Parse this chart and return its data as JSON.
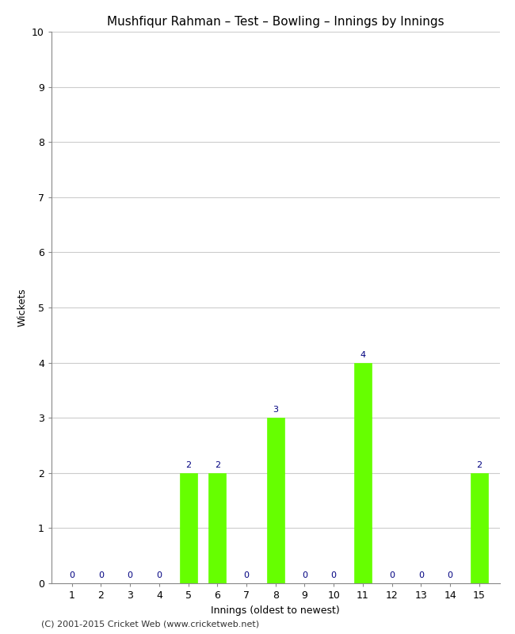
{
  "title": "Mushfiqur Rahman – Test – Bowling – Innings by Innings",
  "xlabel": "Innings (oldest to newest)",
  "ylabel": "Wickets",
  "innings": [
    1,
    2,
    3,
    4,
    5,
    6,
    7,
    8,
    9,
    10,
    11,
    12,
    13,
    14,
    15
  ],
  "wickets": [
    0,
    0,
    0,
    0,
    2,
    2,
    0,
    3,
    0,
    0,
    4,
    0,
    0,
    0,
    2
  ],
  "bar_color": "#66ff00",
  "ylim": [
    0,
    10
  ],
  "yticks": [
    0,
    1,
    2,
    3,
    4,
    5,
    6,
    7,
    8,
    9,
    10
  ],
  "annotation_color": "#000080",
  "background_color": "#ffffff",
  "grid_color": "#cccccc",
  "footer": "(C) 2001-2015 Cricket Web (www.cricketweb.net)",
  "title_fontsize": 11,
  "label_fontsize": 9,
  "tick_fontsize": 9,
  "annotation_fontsize": 8,
  "footer_fontsize": 8
}
